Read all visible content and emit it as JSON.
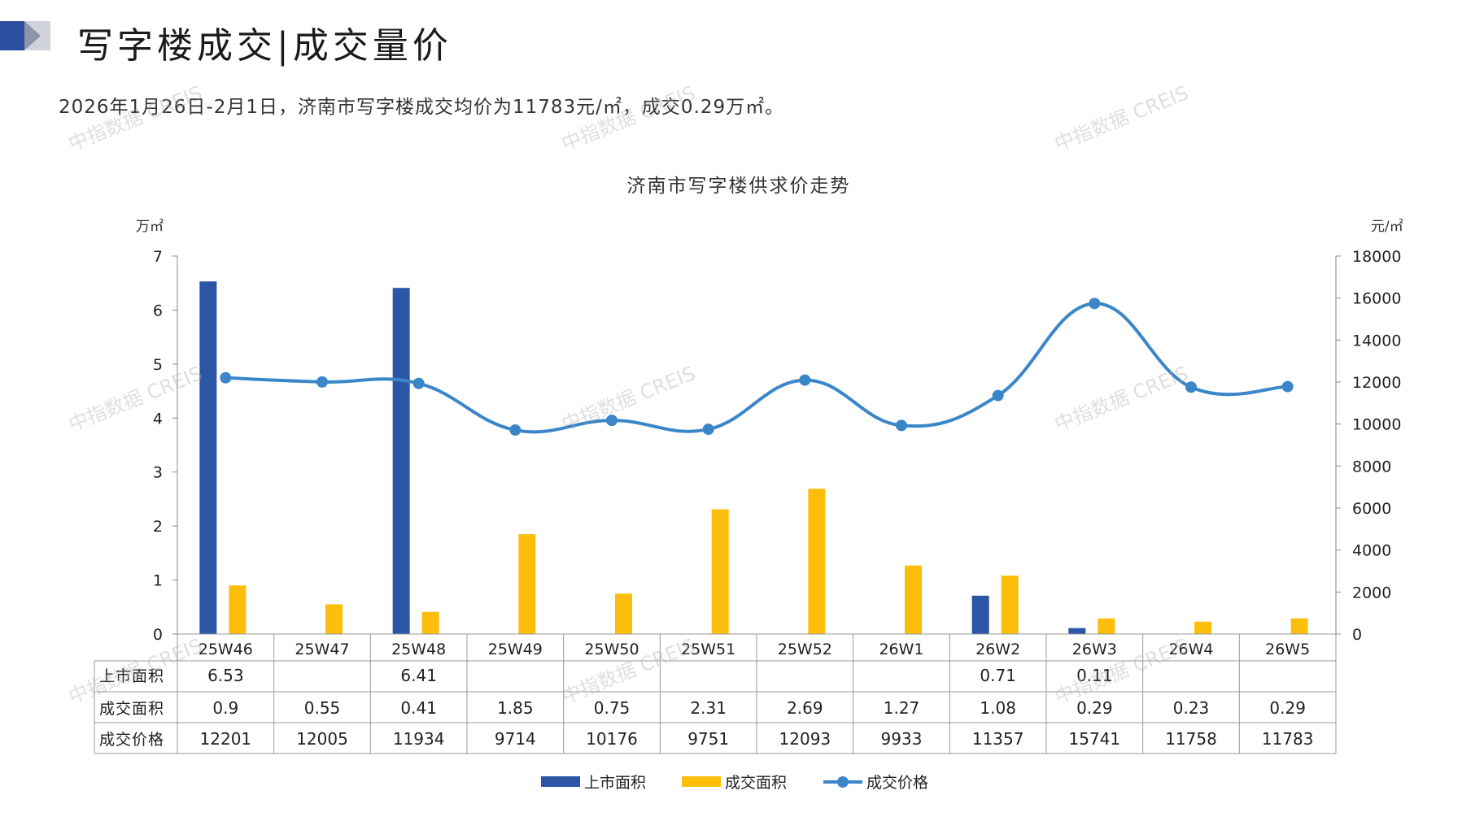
{
  "page": {
    "title": "写字楼成交|成交量价",
    "summary": "2026年1月26日-2月1日，济南市写字楼成交均价为11783元/㎡，成交0.29万㎡。",
    "watermark": "中指数据 CREIS"
  },
  "colors": {
    "listing": "#2b56a6",
    "traded": "#fcbe0a",
    "price": "#3a86c8",
    "deco_dark": "#2d4fa0",
    "deco_grey": "#d0d3da"
  },
  "chart_data": {
    "type": "bar",
    "title": "济南市写字楼供求价走势",
    "y_left_label": "万㎡",
    "y_right_label": "元/㎡",
    "y_left_range": [
      0,
      7
    ],
    "y_left_ticks": [
      "0",
      "1",
      "2",
      "3",
      "4",
      "5",
      "6",
      "7"
    ],
    "y_right_range": [
      0,
      18000
    ],
    "y_right_ticks": [
      "0",
      "2000",
      "4000",
      "6000",
      "8000",
      "10000",
      "12000",
      "14000",
      "16000",
      "18000"
    ],
    "categories": [
      "25W46",
      "25W47",
      "25W48",
      "25W49",
      "25W50",
      "25W51",
      "25W52",
      "26W1",
      "26W2",
      "26W3",
      "26W4",
      "26W5"
    ],
    "series": [
      {
        "name": "上市面积",
        "kind": "bar",
        "axis": "left",
        "values": [
          6.53,
          null,
          6.41,
          null,
          null,
          null,
          null,
          null,
          0.71,
          0.11,
          null,
          null
        ],
        "labels": [
          "6.53",
          "",
          "6.41",
          "",
          "",
          "",
          "",
          "",
          "0.71",
          "0.11",
          "",
          ""
        ]
      },
      {
        "name": "成交面积",
        "kind": "bar",
        "axis": "left",
        "values": [
          0.9,
          0.55,
          0.41,
          1.85,
          0.75,
          2.31,
          2.69,
          1.27,
          1.08,
          0.29,
          0.23,
          0.29
        ],
        "labels": [
          "0.9",
          "0.55",
          "0.41",
          "1.85",
          "0.75",
          "2.31",
          "2.69",
          "1.27",
          "1.08",
          "0.29",
          "0.23",
          "0.29"
        ]
      },
      {
        "name": "成交价格",
        "kind": "line",
        "axis": "right",
        "values": [
          12201,
          12005,
          11934,
          9714,
          10176,
          9751,
          12093,
          9933,
          11357,
          15741,
          11758,
          11783
        ],
        "labels": [
          "12201",
          "12005",
          "11934",
          "9714",
          "10176",
          "9751",
          "12093",
          "9933",
          "11357",
          "15741",
          "11758",
          "11783"
        ]
      }
    ],
    "legend_position": "bottom",
    "grid": false
  }
}
